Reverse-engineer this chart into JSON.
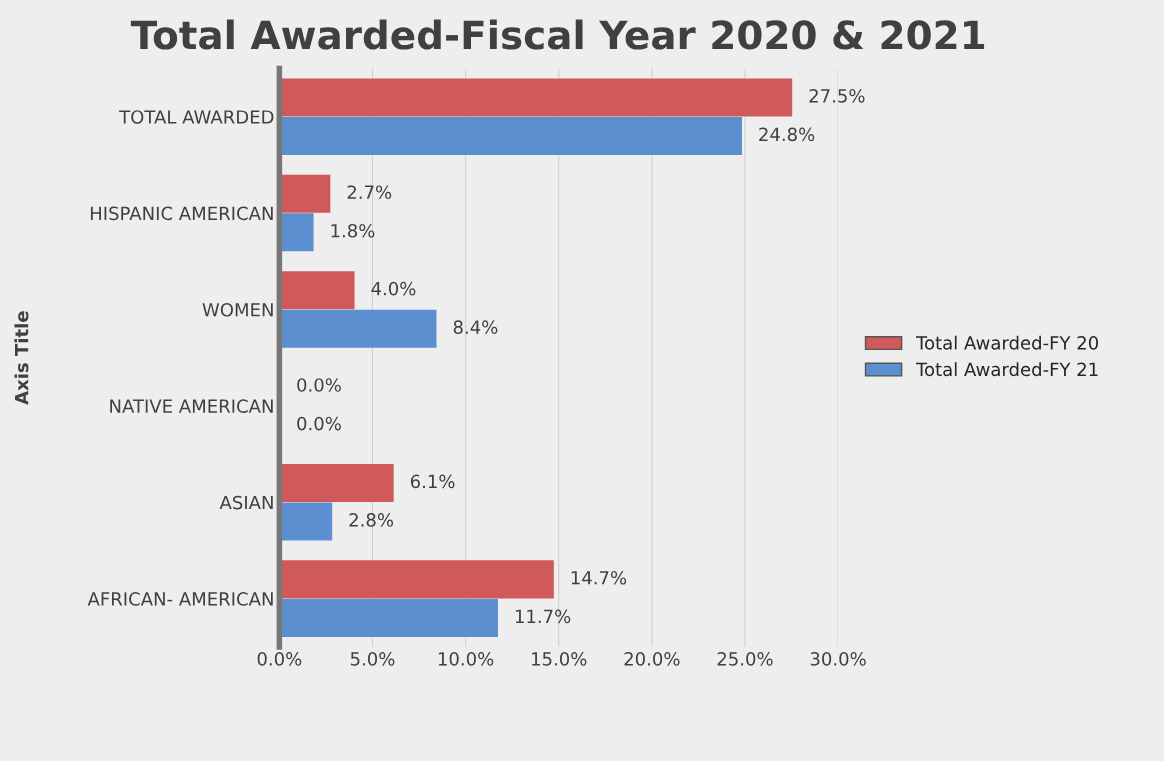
{
  "chart_data": {
    "type": "bar",
    "orientation": "horizontal",
    "title": "Total Awarded-Fiscal Year 2020 & 2021",
    "ylabel": "Axis Title",
    "categories": [
      "TOTAL AWARDED",
      "HISPANIC AMERICAN",
      "WOMEN",
      "NATIVE AMERICAN",
      "ASIAN",
      "AFRICAN- AMERICAN"
    ],
    "series": [
      {
        "name": "Total Awarded-FY 20",
        "color": "#d0595b",
        "values": [
          27.5,
          2.7,
          4.0,
          0.0,
          6.1,
          14.7
        ],
        "value_labels": [
          "27.5%",
          "2.7%",
          "4.0%",
          "0.0%",
          "6.1%",
          "14.7%"
        ]
      },
      {
        "name": "Total Awarded-FY 21",
        "color": "#5b8fd0",
        "values": [
          24.8,
          1.8,
          8.4,
          0.0,
          2.8,
          11.7
        ],
        "value_labels": [
          "24.8%",
          "1.8%",
          "8.4%",
          "0.0%",
          "2.8%",
          "11.7%"
        ]
      }
    ],
    "xlim": [
      0,
      30
    ],
    "xticks": [
      {
        "value": 0,
        "label": "0.0%"
      },
      {
        "value": 5,
        "label": "5.0%"
      },
      {
        "value": 10,
        "label": "10.0%"
      },
      {
        "value": 15,
        "label": "15.0%"
      },
      {
        "value": 20,
        "label": "20.0%"
      },
      {
        "value": 25,
        "label": "25.0%"
      },
      {
        "value": 30,
        "label": "30.0%"
      }
    ],
    "grid": "x",
    "legend": "right"
  }
}
